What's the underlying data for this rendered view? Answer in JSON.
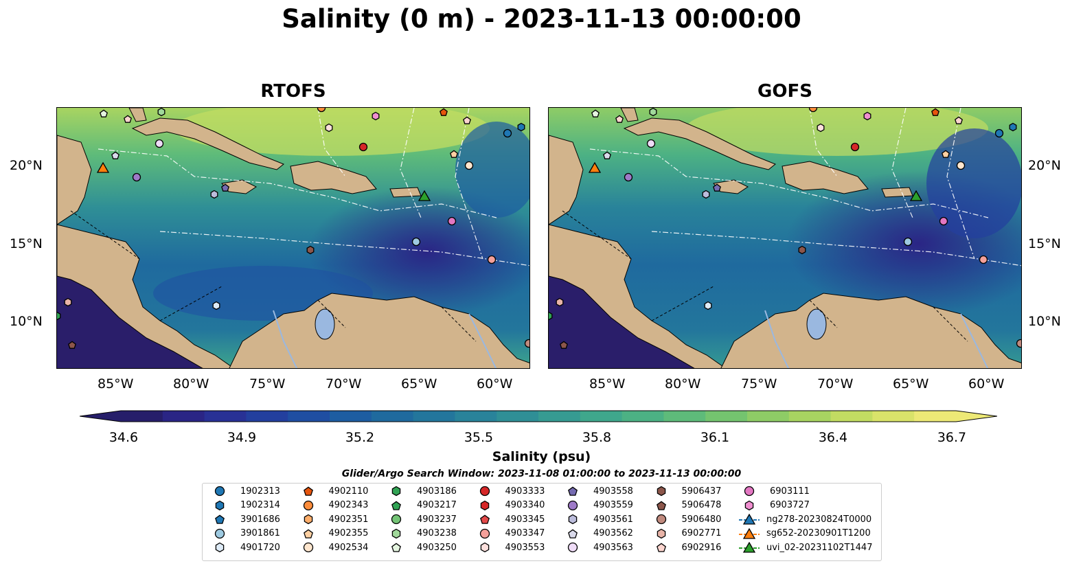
{
  "title": "Salinity (0 m) - 2023-11-13 00:00:00",
  "panels": [
    {
      "title": "RTOFS"
    },
    {
      "title": "GOFS"
    }
  ],
  "lat_ticks": [
    "20°N",
    "15°N",
    "10°N"
  ],
  "lon_ticks": [
    "85°W",
    "80°W",
    "75°W",
    "70°W",
    "65°W",
    "60°W"
  ],
  "colorbar": {
    "label": "Salinity (psu)",
    "ticks": [
      "34.6",
      "34.9",
      "35.2",
      "35.5",
      "35.8",
      "36.1",
      "36.4",
      "36.7"
    ],
    "min": 34.6,
    "max": 36.7,
    "colors": [
      "#261e6a",
      "#2a2585",
      "#283195",
      "#233f9e",
      "#1f4ea2",
      "#1d5da1",
      "#1f6a9e",
      "#23769c",
      "#29839a",
      "#2f8f96",
      "#369b92",
      "#3fa78c",
      "#4cb184",
      "#5ebb7a",
      "#74c46f",
      "#8ecc66",
      "#a8d461",
      "#c2dc62",
      "#d9e36a",
      "#ede976"
    ]
  },
  "search_window": "Glider/Argo Search Window: 2023-11-08 01:00:00 to 2023-11-13 00:00:00",
  "legend": [
    {
      "label": "1902313",
      "color": "#1f77b4",
      "shape": "circle"
    },
    {
      "label": "1902314",
      "color": "#1f77b4",
      "shape": "hexagon"
    },
    {
      "label": "3901686",
      "color": "#1f77b4",
      "shape": "pentagon"
    },
    {
      "label": "3901861",
      "color": "#9ecae1",
      "shape": "circle"
    },
    {
      "label": "4901720",
      "color": "#deebf7",
      "shape": "hexagon"
    },
    {
      "label": "4902110",
      "color": "#e6550d",
      "shape": "pentagon"
    },
    {
      "label": "4902343",
      "color": "#fd8d3c",
      "shape": "circle"
    },
    {
      "label": "4902351",
      "color": "#fdae6b",
      "shape": "hexagon"
    },
    {
      "label": "4902355",
      "color": "#fdd0a2",
      "shape": "pentagon"
    },
    {
      "label": "4902534",
      "color": "#fee6ce",
      "shape": "circle"
    },
    {
      "label": "4903186",
      "color": "#31a354",
      "shape": "hexagon"
    },
    {
      "label": "4903217",
      "color": "#31a354",
      "shape": "pentagon"
    },
    {
      "label": "4903237",
      "color": "#74c476",
      "shape": "circle"
    },
    {
      "label": "4903238",
      "color": "#a1d99b",
      "shape": "hexagon"
    },
    {
      "label": "4903250",
      "color": "#e5f5e0",
      "shape": "pentagon"
    },
    {
      "label": "4903333",
      "color": "#d62728",
      "shape": "circle"
    },
    {
      "label": "4903340",
      "color": "#d62728",
      "shape": "hexagon"
    },
    {
      "label": "4903345",
      "color": "#e34a4a",
      "shape": "pentagon"
    },
    {
      "label": "4903347",
      "color": "#f4a09a",
      "shape": "circle"
    },
    {
      "label": "4903553",
      "color": "#fde0dd",
      "shape": "hexagon"
    },
    {
      "label": "4903558",
      "color": "#756bb1",
      "shape": "pentagon"
    },
    {
      "label": "4903559",
      "color": "#9e7ac8",
      "shape": "circle"
    },
    {
      "label": "4903561",
      "color": "#bcbddc",
      "shape": "hexagon"
    },
    {
      "label": "4903562",
      "color": "#dadaeb",
      "shape": "pentagon"
    },
    {
      "label": "4903563",
      "color": "#efdcf7",
      "shape": "circle"
    },
    {
      "label": "5906437",
      "color": "#8c564b",
      "shape": "hexagon"
    },
    {
      "label": "5906478",
      "color": "#8c564b",
      "shape": "pentagon"
    },
    {
      "label": "5906480",
      "color": "#c08a7e",
      "shape": "circle"
    },
    {
      "label": "6902771",
      "color": "#e8b4a8",
      "shape": "hexagon"
    },
    {
      "label": "6902916",
      "color": "#fcd5cf",
      "shape": "pentagon"
    },
    {
      "label": "6903111",
      "color": "#e377c2",
      "shape": "circle"
    },
    {
      "label": "6903727",
      "color": "#f08fd0",
      "shape": "hexagon"
    },
    {
      "label": "ng278-20230824T0000",
      "color": "#1f77b4",
      "shape": "triangle-line"
    },
    {
      "label": "sg652-20230901T1200",
      "color": "#ff7f0e",
      "shape": "triangle-line"
    },
    {
      "label": "uvi_02-20231102T1447",
      "color": "#2ca02c",
      "shape": "triangle-line"
    }
  ],
  "colors": {
    "land": "#d2b48c",
    "lake": "#9ab8e0",
    "pacific": "#2a1e6a"
  }
}
